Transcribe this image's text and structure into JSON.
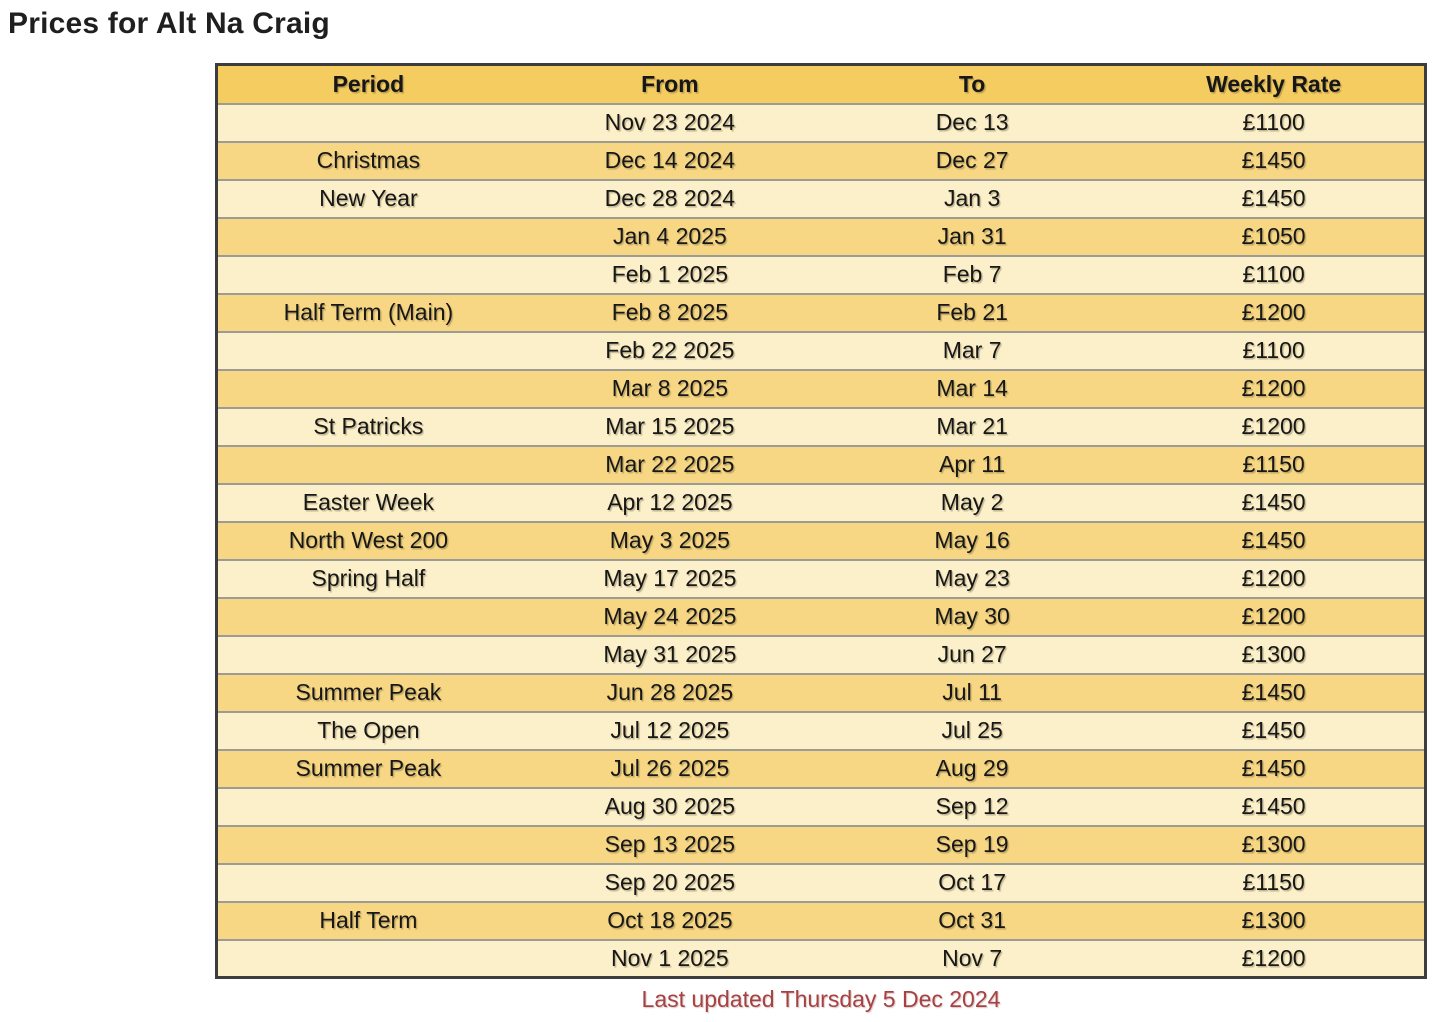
{
  "page": {
    "title": "Prices for Alt Na Craig",
    "footer": "Last updated Thursday 5 Dec 2024"
  },
  "colors": {
    "header_bg": "#f5cc60",
    "row_light": "#fcf0ca",
    "row_dark": "#f7d783",
    "inner_border": "#9c9c94",
    "outer_border": "#3d3d3d",
    "text_color": "#171717",
    "footer_color": "#a84242",
    "page_bg": "#ffffff"
  },
  "table": {
    "headers": [
      "Period",
      "From",
      "To",
      "Weekly Rate"
    ],
    "rows": [
      {
        "period": "",
        "from": "Nov 23 2024",
        "to": "Dec 13",
        "rate": "£1100"
      },
      {
        "period": "Christmas",
        "from": "Dec 14 2024",
        "to": "Dec 27",
        "rate": "£1450"
      },
      {
        "period": "New Year",
        "from": "Dec 28 2024",
        "to": "Jan 3",
        "rate": "£1450"
      },
      {
        "period": "",
        "from": "Jan 4 2025",
        "to": "Jan 31",
        "rate": "£1050"
      },
      {
        "period": "",
        "from": "Feb 1 2025",
        "to": "Feb 7",
        "rate": "£1100"
      },
      {
        "period": "Half Term (Main)",
        "from": "Feb 8 2025",
        "to": "Feb 21",
        "rate": "£1200"
      },
      {
        "period": "",
        "from": "Feb 22 2025",
        "to": "Mar 7",
        "rate": "£1100"
      },
      {
        "period": "",
        "from": "Mar 8 2025",
        "to": "Mar 14",
        "rate": "£1200"
      },
      {
        "period": "St Patricks",
        "from": "Mar 15 2025",
        "to": "Mar 21",
        "rate": "£1200"
      },
      {
        "period": "",
        "from": "Mar 22 2025",
        "to": "Apr 11",
        "rate": "£1150"
      },
      {
        "period": "Easter Week",
        "from": "Apr 12 2025",
        "to": "May 2",
        "rate": "£1450"
      },
      {
        "period": "North West 200",
        "from": "May 3 2025",
        "to": "May 16",
        "rate": "£1450"
      },
      {
        "period": "Spring Half",
        "from": "May 17 2025",
        "to": "May 23",
        "rate": "£1200"
      },
      {
        "period": "",
        "from": "May 24 2025",
        "to": "May 30",
        "rate": "£1200"
      },
      {
        "period": "",
        "from": "May 31 2025",
        "to": "Jun 27",
        "rate": "£1300"
      },
      {
        "period": "Summer Peak",
        "from": "Jun 28 2025",
        "to": "Jul 11",
        "rate": "£1450"
      },
      {
        "period": "The Open",
        "from": "Jul 12 2025",
        "to": "Jul 25",
        "rate": "£1450"
      },
      {
        "period": "Summer Peak",
        "from": "Jul 26 2025",
        "to": "Aug 29",
        "rate": "£1450"
      },
      {
        "period": "",
        "from": "Aug 30 2025",
        "to": "Sep 12",
        "rate": "£1450"
      },
      {
        "period": "",
        "from": "Sep 13 2025",
        "to": "Sep 19",
        "rate": "£1300"
      },
      {
        "period": "",
        "from": "Sep 20 2025",
        "to": "Oct 17",
        "rate": "£1150"
      },
      {
        "period": "Half Term",
        "from": "Oct 18 2025",
        "to": "Oct 31",
        "rate": "£1300"
      },
      {
        "period": "",
        "from": "Nov 1 2025",
        "to": "Nov 7",
        "rate": "£1200"
      }
    ]
  }
}
